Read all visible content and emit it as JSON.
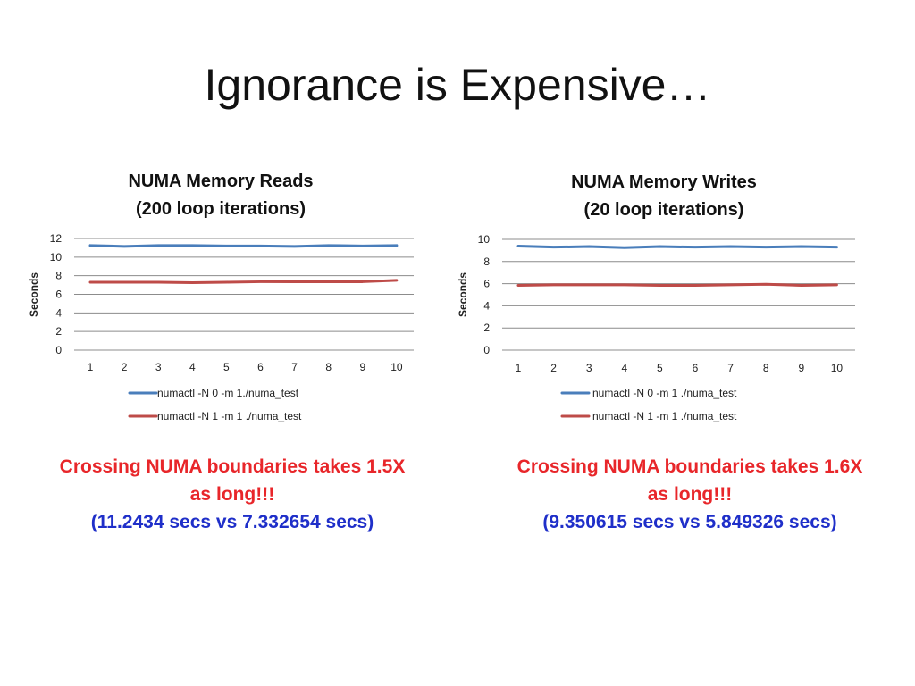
{
  "slide": {
    "title": "Ignorance is Expensive…"
  },
  "chart_data": [
    {
      "type": "line",
      "title": [
        "NUMA Memory Reads",
        "(200 loop iterations)"
      ],
      "ylabel": "Seconds",
      "xlabel": "",
      "categories": [
        "1",
        "2",
        "3",
        "4",
        "5",
        "6",
        "7",
        "8",
        "9",
        "10"
      ],
      "yticks": [
        0,
        2,
        4,
        6,
        8,
        10,
        12
      ],
      "ylim": [
        0,
        12
      ],
      "grid": true,
      "legend": "bottom",
      "series": [
        {
          "name": "numactl -N 0 -m 1./numa_test",
          "color": "#4a7ebb",
          "values": [
            11.25,
            11.15,
            11.25,
            11.25,
            11.2,
            11.2,
            11.15,
            11.25,
            11.2,
            11.25
          ]
        },
        {
          "name": "numactl -N 1 -m 1 ./numa_test",
          "color": "#be4b48",
          "values": [
            7.3,
            7.3,
            7.3,
            7.25,
            7.3,
            7.35,
            7.35,
            7.35,
            7.35,
            7.5
          ]
        }
      ]
    },
    {
      "type": "line",
      "title": [
        "NUMA Memory Writes",
        "(20 loop iterations)"
      ],
      "ylabel": "Seconds",
      "xlabel": "",
      "categories": [
        "1",
        "2",
        "3",
        "4",
        "5",
        "6",
        "7",
        "8",
        "9",
        "10"
      ],
      "yticks": [
        0,
        2,
        4,
        6,
        8,
        10
      ],
      "ylim": [
        0,
        10
      ],
      "grid": true,
      "legend": "bottom",
      "series": [
        {
          "name": "numactl -N 0 -m 1 ./numa_test",
          "color": "#4a7ebb",
          "values": [
            9.4,
            9.3,
            9.35,
            9.25,
            9.35,
            9.3,
            9.35,
            9.3,
            9.35,
            9.3
          ]
        },
        {
          "name": "numactl -N 1 -m 1 ./numa_test",
          "color": "#be4b48",
          "values": [
            5.85,
            5.9,
            5.9,
            5.9,
            5.85,
            5.85,
            5.9,
            5.95,
            5.85,
            5.9
          ]
        }
      ]
    }
  ],
  "conclusions": [
    {
      "line1": "Crossing NUMA boundaries takes 1.5X",
      "line2": "as long!!!",
      "line3": "(11.2434 secs vs 7.332654 secs)"
    },
    {
      "line1": "Crossing NUMA boundaries takes 1.6X",
      "line2": "as long!!!",
      "line3": "(9.350615 secs vs 5.849326 secs)"
    }
  ]
}
